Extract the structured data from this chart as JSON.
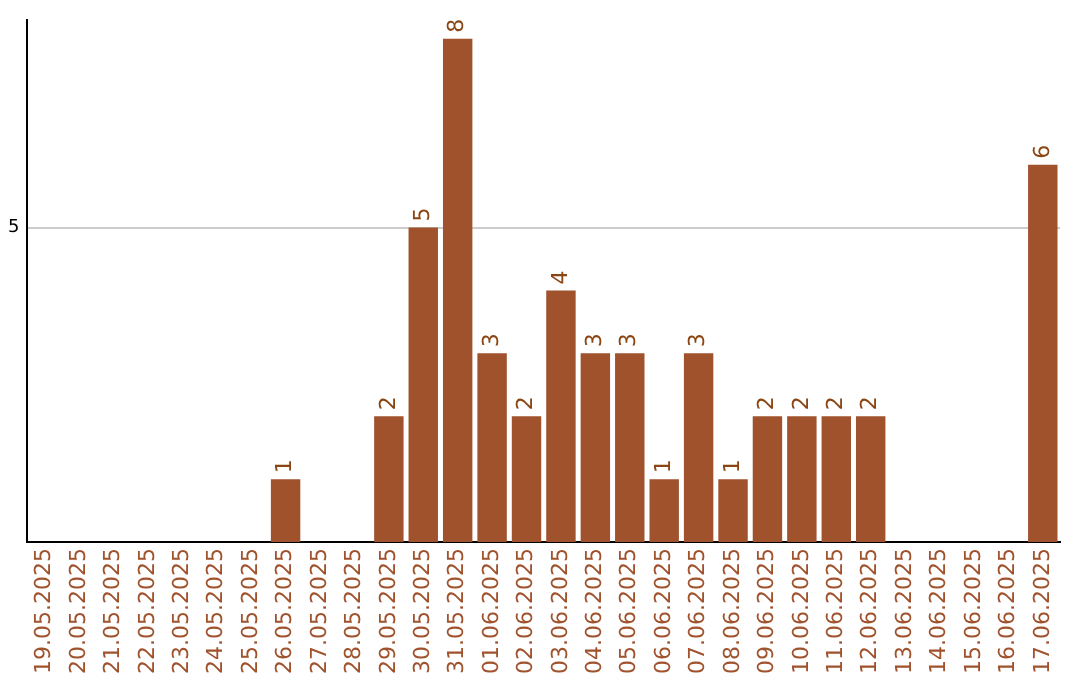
{
  "chart_data": {
    "type": "bar",
    "categories": [
      "19.05.2025",
      "20.05.2025",
      "21.05.2025",
      "22.05.2025",
      "23.05.2025",
      "24.05.2025",
      "25.05.2025",
      "26.05.2025",
      "27.05.2025",
      "28.05.2025",
      "29.05.2025",
      "30.05.2025",
      "31.05.2025",
      "01.06.2025",
      "02.06.2025",
      "03.06.2025",
      "04.06.2025",
      "05.06.2025",
      "06.06.2025",
      "07.06.2025",
      "08.06.2025",
      "09.06.2025",
      "10.06.2025",
      "11.06.2025",
      "12.06.2025",
      "13.06.2025",
      "14.06.2025",
      "15.06.2025",
      "16.06.2025",
      "17.06.2025"
    ],
    "values": [
      0,
      0,
      0,
      0,
      0,
      0,
      0,
      1,
      0,
      0,
      2,
      5,
      8,
      3,
      2,
      4,
      3,
      3,
      1,
      3,
      1,
      2,
      2,
      2,
      2,
      0,
      0,
      0,
      0,
      6
    ],
    "value_labels": [
      null,
      null,
      null,
      null,
      null,
      null,
      null,
      "1",
      null,
      null,
      "2",
      "5",
      "8",
      "3",
      "2",
      "4",
      "3",
      "3",
      "1",
      "3",
      "1",
      "2",
      "2",
      "2",
      "2",
      null,
      null,
      null,
      null,
      "6"
    ],
    "color": "#a0522d",
    "ylim": [
      0,
      8.3
    ],
    "yticks": [
      5
    ],
    "grid": "y",
    "legend": false
  }
}
